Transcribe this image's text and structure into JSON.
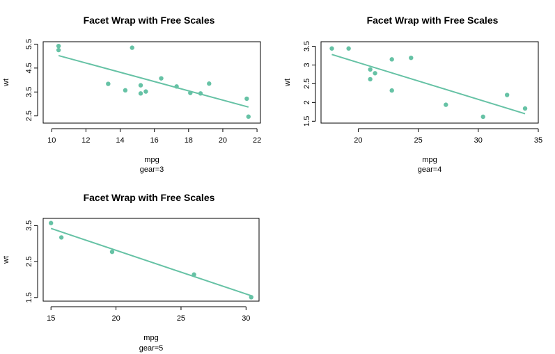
{
  "colors": {
    "point": "#66C2A5",
    "line": "#66C2A5",
    "axis": "#000000"
  },
  "chart_data": [
    {
      "type": "scatter",
      "title": "Facet Wrap with Free Scales",
      "xlabel": "mpg",
      "sublabel": "gear=3",
      "ylabel": "wt",
      "xlim": [
        9.5,
        22.2
      ],
      "ylim": [
        2.2,
        5.6
      ],
      "xticks": [
        10,
        12,
        14,
        16,
        18,
        20,
        22
      ],
      "yticks": [
        2.5,
        3.5,
        4.5,
        5.5
      ],
      "points": [
        {
          "x": 10.4,
          "y": 5.42
        },
        {
          "x": 10.4,
          "y": 5.25
        },
        {
          "x": 14.7,
          "y": 5.35
        },
        {
          "x": 16.4,
          "y": 4.07
        },
        {
          "x": 13.3,
          "y": 3.84
        },
        {
          "x": 19.2,
          "y": 3.85
        },
        {
          "x": 15.2,
          "y": 3.78
        },
        {
          "x": 17.3,
          "y": 3.73
        },
        {
          "x": 14.3,
          "y": 3.57
        },
        {
          "x": 15.5,
          "y": 3.52
        },
        {
          "x": 15.2,
          "y": 3.44
        },
        {
          "x": 18.1,
          "y": 3.46
        },
        {
          "x": 18.7,
          "y": 3.44
        },
        {
          "x": 21.4,
          "y": 3.22
        },
        {
          "x": 21.5,
          "y": 2.47
        }
      ],
      "fit": {
        "x1": 10.4,
        "y1": 5.02,
        "x2": 21.5,
        "y2": 2.87
      }
    },
    {
      "type": "scatter",
      "title": "Facet Wrap with Free Scales",
      "xlabel": "mpg",
      "sublabel": "gear=4",
      "ylabel": "wt",
      "xlim": [
        16.9,
        35.0
      ],
      "ylim": [
        1.45,
        3.62
      ],
      "xticks": [
        20,
        25,
        30,
        35
      ],
      "yticks": [
        1.5,
        2.0,
        2.5,
        3.0,
        3.5
      ],
      "points": [
        {
          "x": 17.8,
          "y": 3.44
        },
        {
          "x": 19.2,
          "y": 3.44
        },
        {
          "x": 21.0,
          "y": 2.88
        },
        {
          "x": 21.4,
          "y": 2.78
        },
        {
          "x": 21.0,
          "y": 2.62
        },
        {
          "x": 22.8,
          "y": 3.15
        },
        {
          "x": 24.4,
          "y": 3.19
        },
        {
          "x": 22.8,
          "y": 2.32
        },
        {
          "x": 27.3,
          "y": 1.94
        },
        {
          "x": 30.4,
          "y": 1.62
        },
        {
          "x": 32.4,
          "y": 2.2
        },
        {
          "x": 33.9,
          "y": 1.84
        }
      ],
      "fit": {
        "x1": 17.8,
        "y1": 3.28,
        "x2": 33.9,
        "y2": 1.7
      }
    },
    {
      "type": "scatter",
      "title": "Facet Wrap with Free Scales",
      "xlabel": "mpg",
      "sublabel": "gear=5",
      "ylabel": "wt",
      "xlim": [
        14.4,
        31.0
      ],
      "ylim": [
        1.4,
        3.7
      ],
      "xticks": [
        15,
        20,
        25,
        30
      ],
      "yticks": [
        1.5,
        2.5,
        3.5
      ],
      "points": [
        {
          "x": 15.0,
          "y": 3.57
        },
        {
          "x": 15.8,
          "y": 3.17
        },
        {
          "x": 19.7,
          "y": 2.77
        },
        {
          "x": 26.0,
          "y": 2.14
        },
        {
          "x": 30.4,
          "y": 1.51
        }
      ],
      "fit": {
        "x1": 15.0,
        "y1": 3.42,
        "x2": 30.4,
        "y2": 1.55
      }
    }
  ]
}
